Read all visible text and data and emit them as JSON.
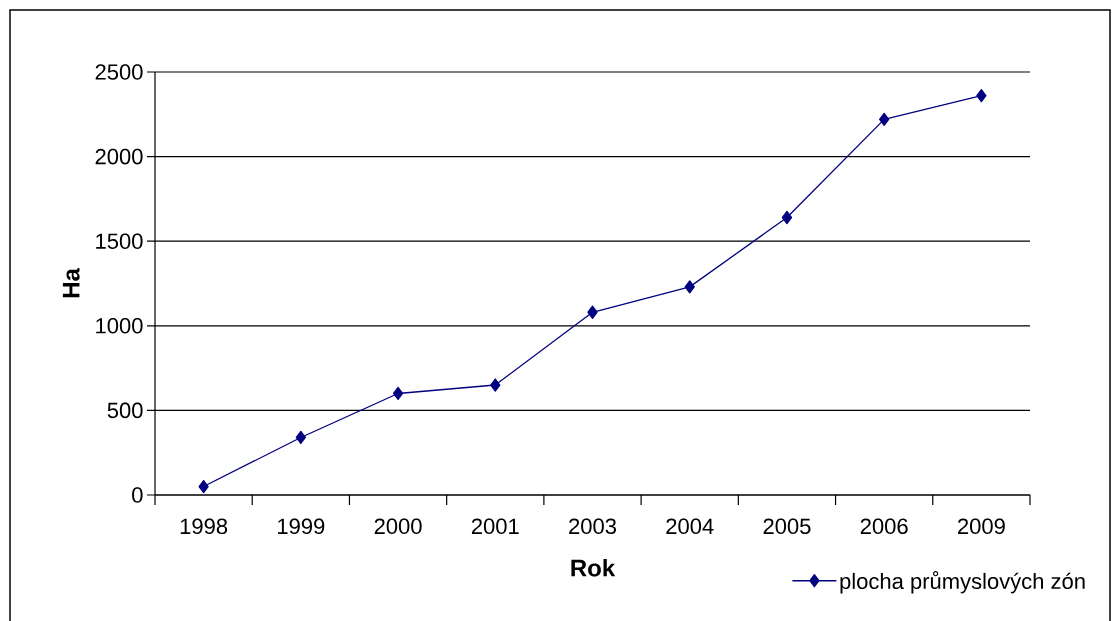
{
  "chart_data": {
    "type": "line",
    "xlabel": "Rok",
    "ylabel": "Ha",
    "categories": [
      "1998",
      "1999",
      "2000",
      "2001",
      "2003",
      "2004",
      "2005",
      "2006",
      "2009"
    ],
    "series": [
      {
        "name": "plocha průmyslových zón",
        "color": "#000080",
        "values": [
          50,
          340,
          600,
          650,
          1080,
          1230,
          1640,
          2220,
          2360
        ]
      }
    ],
    "ylim": [
      0,
      2500
    ],
    "yticks": [
      0,
      500,
      1000,
      1500,
      2000,
      2500
    ],
    "grid": "y",
    "legend": "bottom right",
    "marker": "diamond",
    "line_style": "solid"
  }
}
